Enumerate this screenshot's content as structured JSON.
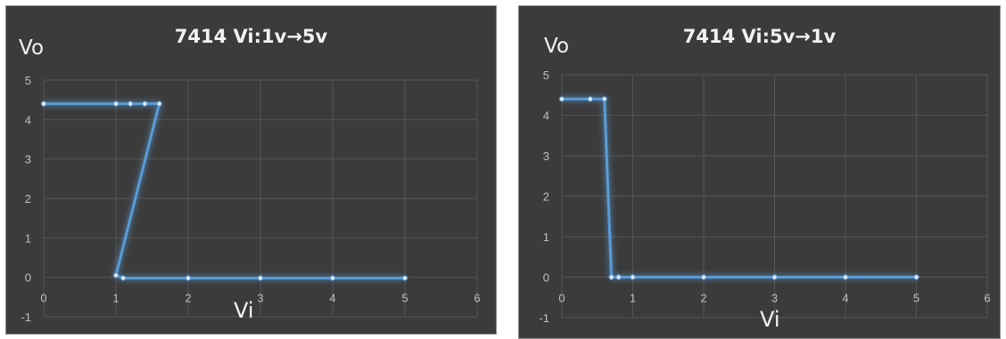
{
  "chart_data": [
    {
      "type": "line",
      "title": "7414 Vi:1v→5v",
      "xlabel": "Vi",
      "ylabel": "Vo",
      "xlim": [
        0,
        6
      ],
      "ylim": [
        -1,
        5
      ],
      "xticks": [
        "0",
        "1",
        "2",
        "3",
        "4",
        "5",
        "6"
      ],
      "yticks": [
        "-1",
        "0",
        "1",
        "2",
        "3",
        "4",
        "5"
      ],
      "grid": true,
      "line_color": "#5b9bd5",
      "series": [
        {
          "x": [
            0,
            1,
            1.2,
            1.4,
            1.6,
            1,
            1.1,
            2,
            3,
            4,
            5
          ],
          "y": [
            4.4,
            4.4,
            4.4,
            4.4,
            4.4,
            0.05,
            -0.02,
            -0.02,
            -0.02,
            -0.02,
            -0.02
          ]
        }
      ]
    },
    {
      "type": "line",
      "title": "7414 Vi:5v→1v",
      "xlabel": "Vi",
      "ylabel": "Vo",
      "xlim": [
        0,
        6
      ],
      "ylim": [
        -1,
        5
      ],
      "xticks": [
        "0",
        "1",
        "2",
        "3",
        "4",
        "5",
        "6"
      ],
      "yticks": [
        "-1",
        "0",
        "1",
        "2",
        "3",
        "4",
        "5"
      ],
      "grid": true,
      "line_color": "#5b9bd5",
      "series": [
        {
          "x": [
            0,
            0.4,
            0.6,
            0.7,
            0.8,
            1,
            2,
            3,
            4,
            5
          ],
          "y": [
            4.4,
            4.4,
            4.4,
            0,
            0,
            0,
            0,
            0,
            0,
            0
          ]
        }
      ]
    }
  ]
}
